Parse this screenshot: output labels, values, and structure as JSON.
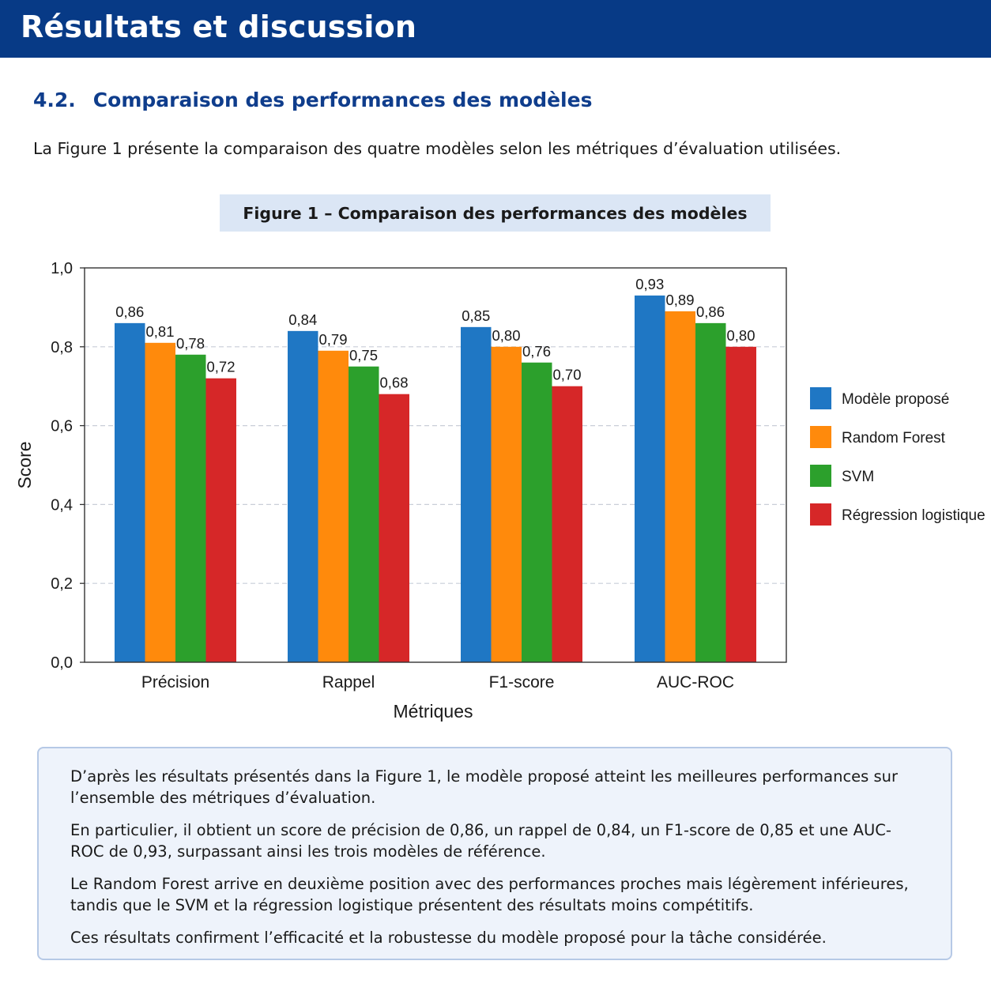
{
  "header": {
    "title": "Résultats et discussion"
  },
  "section": {
    "number": "4.2.",
    "title": "Comparaison des performances des modèles"
  },
  "intro": "La Figure 1 présente la comparaison des quatre modèles selon les métriques d’évaluation utilisées.",
  "figure": {
    "caption": "Figure 1 – Comparaison des performances des modèles"
  },
  "chart_data": {
    "type": "bar",
    "xlabel": "Métriques",
    "ylabel": "Score",
    "ylim": [
      0,
      1
    ],
    "yticks": [
      "0,0",
      "0,2",
      "0,4",
      "0,6",
      "0,8",
      "1,0"
    ],
    "categories": [
      "Précision",
      "Rappel",
      "F1-score",
      "AUC-ROC"
    ],
    "grid": "horizontal dashed",
    "legend_position": "right",
    "series": [
      {
        "name": "Modèle proposé",
        "color": "#1f77c4",
        "values": [
          0.86,
          0.84,
          0.85,
          0.93
        ],
        "labels": [
          "0,86",
          "0,84",
          "0,85",
          "0,93"
        ]
      },
      {
        "name": "Random Forest",
        "color": "#ff8a0c",
        "values": [
          0.81,
          0.79,
          0.8,
          0.89
        ],
        "labels": [
          "0,81",
          "0,79",
          "0,80",
          "0,89"
        ]
      },
      {
        "name": "SVM",
        "color": "#2ca02c",
        "values": [
          0.78,
          0.75,
          0.76,
          0.86
        ],
        "labels": [
          "0,78",
          "0,75",
          "0,76",
          "0,86"
        ]
      },
      {
        "name": "Régression logistique",
        "color": "#d62728",
        "values": [
          0.72,
          0.68,
          0.7,
          0.8
        ],
        "labels": [
          "0,72",
          "0,68",
          "0,70",
          "0,80"
        ]
      }
    ]
  },
  "discussion": {
    "paragraphs": [
      "D’après les résultats présentés dans la Figure 1, le modèle proposé atteint les meilleures performances sur l’ensemble des métriques d’évaluation.",
      "En particulier, il obtient un score de précision de 0,86, un rappel de 0,84, un F1-score de 0,85 et une AUC-ROC de 0,93, surpassant ainsi les trois modèles de référence.",
      "Le Random Forest arrive en deuxième position avec des performances proches mais légèrement inférieures, tandis que le SVM et la régression logistique présentent des résultats moins compétitifs.",
      "Ces résultats confirment l’efficacité et la robustesse du modèle proposé pour la tâche considérée."
    ]
  }
}
